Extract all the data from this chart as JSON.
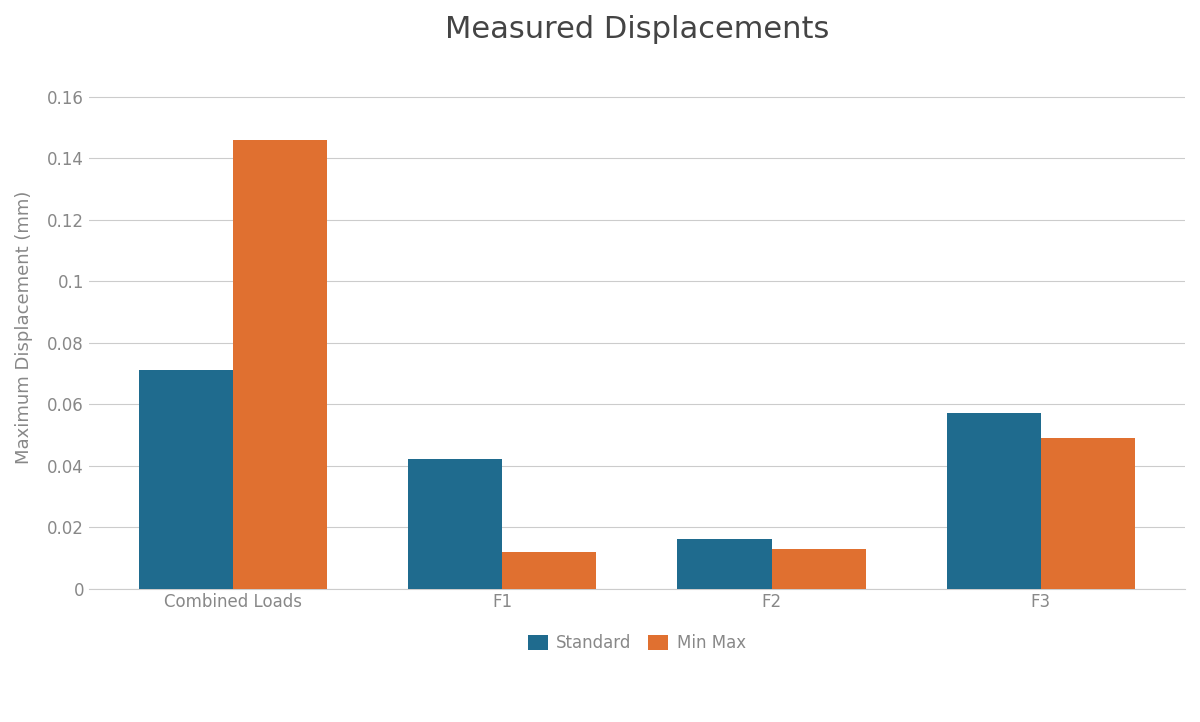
{
  "title": "Measured Displacements",
  "ylabel": "Maximum Displacement (mm)",
  "categories": [
    "Combined Loads",
    "F1",
    "F2",
    "F3"
  ],
  "standard_values": [
    0.071,
    0.042,
    0.016,
    0.057
  ],
  "minmax_values": [
    0.146,
    0.012,
    0.013,
    0.049
  ],
  "standard_color": "#1f6b8e",
  "minmax_color": "#e07030",
  "ylim": [
    0,
    0.17
  ],
  "ytick_values": [
    0,
    0.02,
    0.04,
    0.06,
    0.08,
    0.1,
    0.12,
    0.14,
    0.16
  ],
  "ytick_labels": [
    "0",
    "0.02",
    "0.04",
    "0.06",
    "0.08",
    "0.1",
    "0.12",
    "0.14",
    "0.16"
  ],
  "legend_labels": [
    "Standard",
    "Min Max"
  ],
  "bar_width": 0.35,
  "background_color": "#ffffff",
  "plot_bg_color": "#ffffff",
  "title_fontsize": 22,
  "label_fontsize": 13,
  "tick_fontsize": 12,
  "legend_fontsize": 12,
  "grid_color": "#cccccc",
  "text_color": "#888888",
  "title_color": "#444444"
}
